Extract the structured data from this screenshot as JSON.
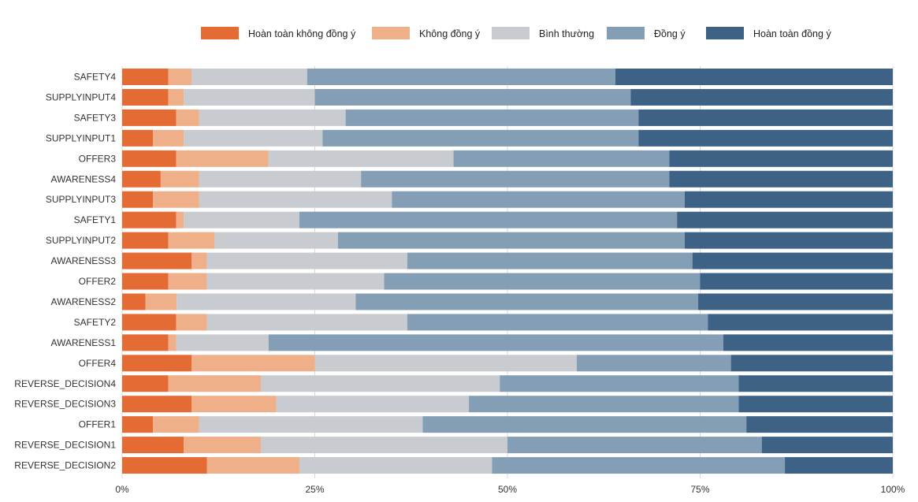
{
  "chart_data": {
    "type": "bar",
    "orientation": "horizontal",
    "stacked": true,
    "normalized": true,
    "title": "",
    "xlabel": "",
    "ylabel": "",
    "xlim": [
      0,
      100
    ],
    "x_ticks": [
      "0%",
      "25%",
      "50%",
      "75%",
      "100%"
    ],
    "grid": true,
    "legend_position": "top",
    "categories": [
      "SAFETY4",
      "SUPPLYINPUT4",
      "SAFETY3",
      "SUPPLYINPUT1",
      "OFFER3",
      "AWARENESS4",
      "SUPPLYINPUT3",
      "SAFETY1",
      "SUPPLYINPUT2",
      "AWARENESS3",
      "OFFER2",
      "AWARENESS2",
      "SAFETY2",
      "AWARENESS1",
      "OFFER4",
      "REVERSE_DECISION4",
      "REVERSE_DECISION3",
      "OFFER1",
      "REVERSE_DECISION1",
      "REVERSE_DECISION2"
    ],
    "series": [
      {
        "name": "Hoàn toàn không đồng ý",
        "color": "#e46b33",
        "values": [
          6,
          6,
          7,
          4,
          7,
          5,
          4,
          7,
          6,
          9,
          6,
          3,
          7,
          6,
          9,
          6,
          9,
          4,
          8,
          11
        ]
      },
      {
        "name": "Không đồng ý",
        "color": "#efaf88",
        "values": [
          3,
          2,
          3,
          4,
          12,
          5,
          6,
          1,
          6,
          2,
          5,
          4,
          4,
          1,
          16,
          12,
          11,
          6,
          10,
          12
        ]
      },
      {
        "name": "Bình thường",
        "color": "#c8ccd0",
        "values": [
          15,
          17,
          19,
          18,
          24,
          21,
          25,
          15,
          16,
          26,
          23,
          23,
          26,
          12,
          34,
          31,
          25,
          29,
          32,
          25
        ]
      },
      {
        "name": "Đồng ý",
        "color": "#849fb5",
        "values": [
          40,
          41,
          38,
          41,
          28,
          40,
          38,
          49,
          45,
          37,
          41,
          44,
          39,
          59,
          20,
          31,
          35,
          42,
          33,
          38
        ]
      },
      {
        "name": "Hoàn toàn đồng ý",
        "color": "#3e6186",
        "values": [
          36,
          34,
          33,
          33,
          29,
          29,
          27,
          28,
          27,
          26,
          25,
          25,
          24,
          22,
          21,
          20,
          20,
          19,
          17,
          14
        ]
      }
    ]
  }
}
